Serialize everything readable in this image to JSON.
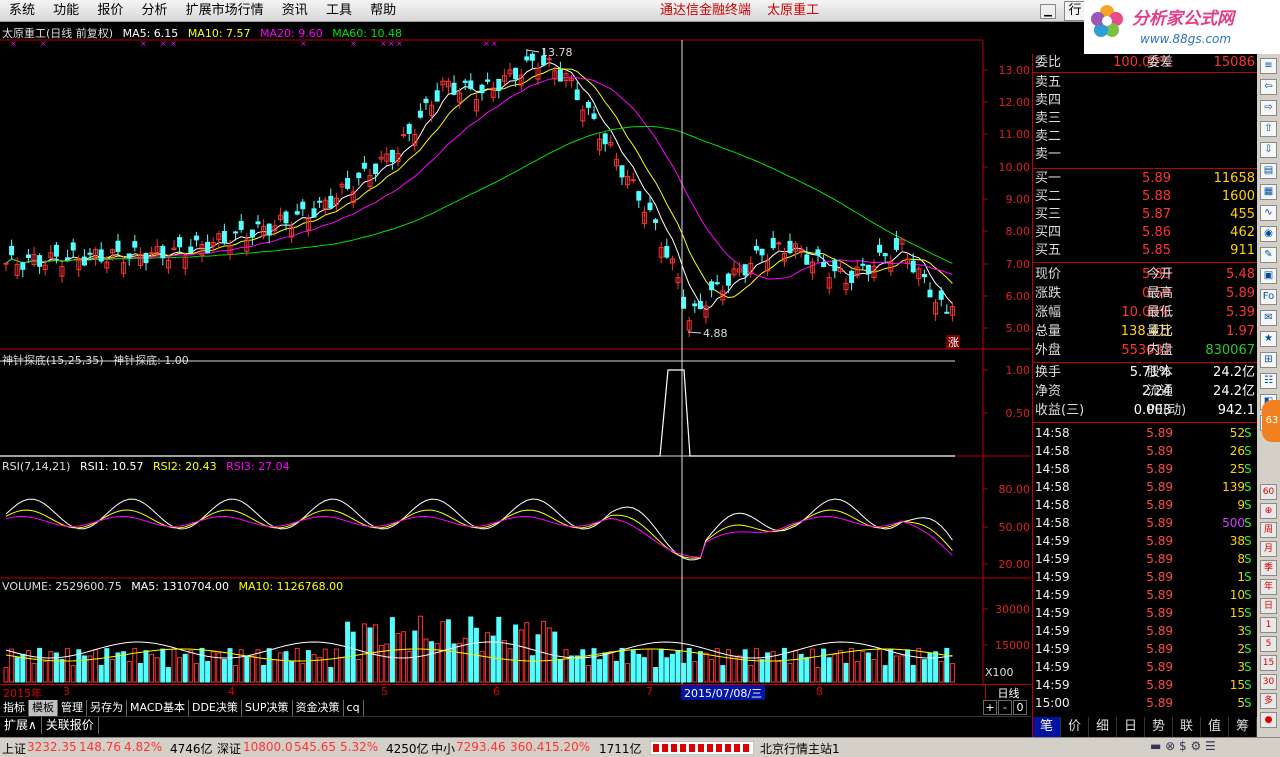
{
  "menu": [
    "系统",
    "功能",
    "报价",
    "分析",
    "扩展市场行情",
    "资讯",
    "工具",
    "帮助"
  ],
  "app_title": "通达信金融终端",
  "stock_title": "太原重工",
  "hang_btn": "行",
  "logo": {
    "brand": "分析家公式网",
    "url": "www.88gs.com"
  },
  "main_panel": {
    "title": "太原重工(日线 前复权)",
    "ma5": "MA5: 6.15",
    "ma10": "MA10: 7.57",
    "ma20": "MA20: 9.60",
    "ma60": "MA60: 10.48",
    "high_label": "13.78",
    "low_label": "4.88",
    "yticks": [
      "13.00",
      "12.00",
      "11.00",
      "10.00",
      "9.00",
      "8.00",
      "7.00",
      "6.00",
      "5.00"
    ],
    "zhang": "涨"
  },
  "ind1": {
    "title": "神针探底(15,25,35)",
    "value": "神针探底: 1.00",
    "yticks": [
      "1.00",
      "0.50"
    ]
  },
  "rsi": {
    "title": "RSI(7,14,21)",
    "rsi1": "RSI1: 10.57",
    "rsi2": "RSI2: 20.43",
    "rsi3": "RSI3: 27.04",
    "yticks": [
      "80.00",
      "50.00",
      "20.00"
    ]
  },
  "volume": {
    "title": "VOLUME: 2529600.75",
    "ma5": "MA5: 1310704.00",
    "ma10": "MA10: 1126768.00",
    "yticks": [
      "30000",
      "15000"
    ],
    "unit": "X100"
  },
  "xaxis": {
    "labels": [
      "2015年",
      "3",
      "4",
      "5",
      "6",
      "7",
      "8"
    ],
    "cursor": "2015/07/08/三",
    "period": "日线"
  },
  "tabs": [
    "指标",
    "模板",
    "管理",
    "另存为",
    "MACD基本",
    "DDE决策",
    "SUP决策",
    "资金决策",
    "cq"
  ],
  "tabs_ctrl": [
    "+",
    "-",
    "0"
  ],
  "tabs2": [
    "扩展∧",
    "关联报价"
  ],
  "quote": {
    "weibi": {
      "k": "委比",
      "v": "100.00%",
      "k2": "委差",
      "v2": "15086"
    },
    "sell": [
      "卖五",
      "卖四",
      "卖三",
      "卖二",
      "卖一"
    ],
    "buy": [
      {
        "k": "买一",
        "p": "5.89",
        "v": "11658"
      },
      {
        "k": "买二",
        "p": "5.88",
        "v": "1600"
      },
      {
        "k": "买三",
        "p": "5.87",
        "v": "455"
      },
      {
        "k": "买四",
        "p": "5.86",
        "v": "462"
      },
      {
        "k": "买五",
        "p": "5.85",
        "v": "911"
      }
    ],
    "stats": [
      {
        "k": "现价",
        "v": "5.89",
        "k2": "今开",
        "v2": "5.48"
      },
      {
        "k": "涨跌",
        "v": "0.54",
        "k2": "最高",
        "v2": "5.89"
      },
      {
        "k": "涨幅",
        "v": "10.09%",
        "k2": "最低",
        "v2": "5.39"
      },
      {
        "k": "总量",
        "v": "138.4万",
        "k2": "量比",
        "v2": "1.97"
      },
      {
        "k": "外盘",
        "v": "553637",
        "k2": "内盘",
        "v2": "830067"
      }
    ],
    "stats2": [
      {
        "k": "换手",
        "v": "5.71%",
        "k2": "股本",
        "v2": "24.2亿"
      },
      {
        "k": "净资",
        "v": "2.24",
        "k2": "流通",
        "v2": "24.2亿"
      },
      {
        "k": "收益(三)",
        "v": "0.003",
        "k2": "PE(动)",
        "v2": "942.1"
      }
    ],
    "ticks": [
      {
        "t": "14:58",
        "p": "5.89",
        "v": "52",
        "s": "S"
      },
      {
        "t": "14:58",
        "p": "5.89",
        "v": "26",
        "s": "S"
      },
      {
        "t": "14:58",
        "p": "5.89",
        "v": "25",
        "s": "S"
      },
      {
        "t": "14:58",
        "p": "5.89",
        "v": "139",
        "s": "S"
      },
      {
        "t": "14:58",
        "p": "5.89",
        "v": "9",
        "s": "S"
      },
      {
        "t": "14:58",
        "p": "5.89",
        "v": "500",
        "s": "S"
      },
      {
        "t": "14:59",
        "p": "5.89",
        "v": "38",
        "s": "S"
      },
      {
        "t": "14:59",
        "p": "5.89",
        "v": "8",
        "s": "S"
      },
      {
        "t": "14:59",
        "p": "5.89",
        "v": "1",
        "s": "S"
      },
      {
        "t": "14:59",
        "p": "5.89",
        "v": "10",
        "s": "S"
      },
      {
        "t": "14:59",
        "p": "5.89",
        "v": "15",
        "s": "S"
      },
      {
        "t": "14:59",
        "p": "5.89",
        "v": "3",
        "s": "S"
      },
      {
        "t": "14:59",
        "p": "5.89",
        "v": "2",
        "s": "S"
      },
      {
        "t": "14:59",
        "p": "5.89",
        "v": "3",
        "s": "S"
      },
      {
        "t": "14:59",
        "p": "5.89",
        "v": "15",
        "s": "S"
      },
      {
        "t": "15:00",
        "p": "5.89",
        "v": "5",
        "s": "S"
      }
    ],
    "tabs": [
      "笔",
      "价",
      "细",
      "日",
      "势",
      "联",
      "值",
      "筹"
    ]
  },
  "status": {
    "sh_label": "上证",
    "sh_val": "3232.35",
    "sh_chg": "148.76",
    "sh_pct": "4.82%",
    "sh_amt": "4746亿",
    "sz_label": "深证",
    "sz_val": "10800.0",
    "sz_chg": "545.65",
    "sz_pct": "5.32%",
    "sz_amt": "4250亿",
    "zx_label": "中小",
    "zx_val": "7293.46",
    "zx_chg": "360.41",
    "zx_pct": "5.20%",
    "zx_amt": "1711亿",
    "server": "北京行情主站1"
  },
  "colors": {
    "up": "#ff3232",
    "down": "#54ffff",
    "ma5": "#ffffff",
    "ma10": "#ffff00",
    "ma20": "#ff00ff",
    "ma60": "#00e000"
  }
}
